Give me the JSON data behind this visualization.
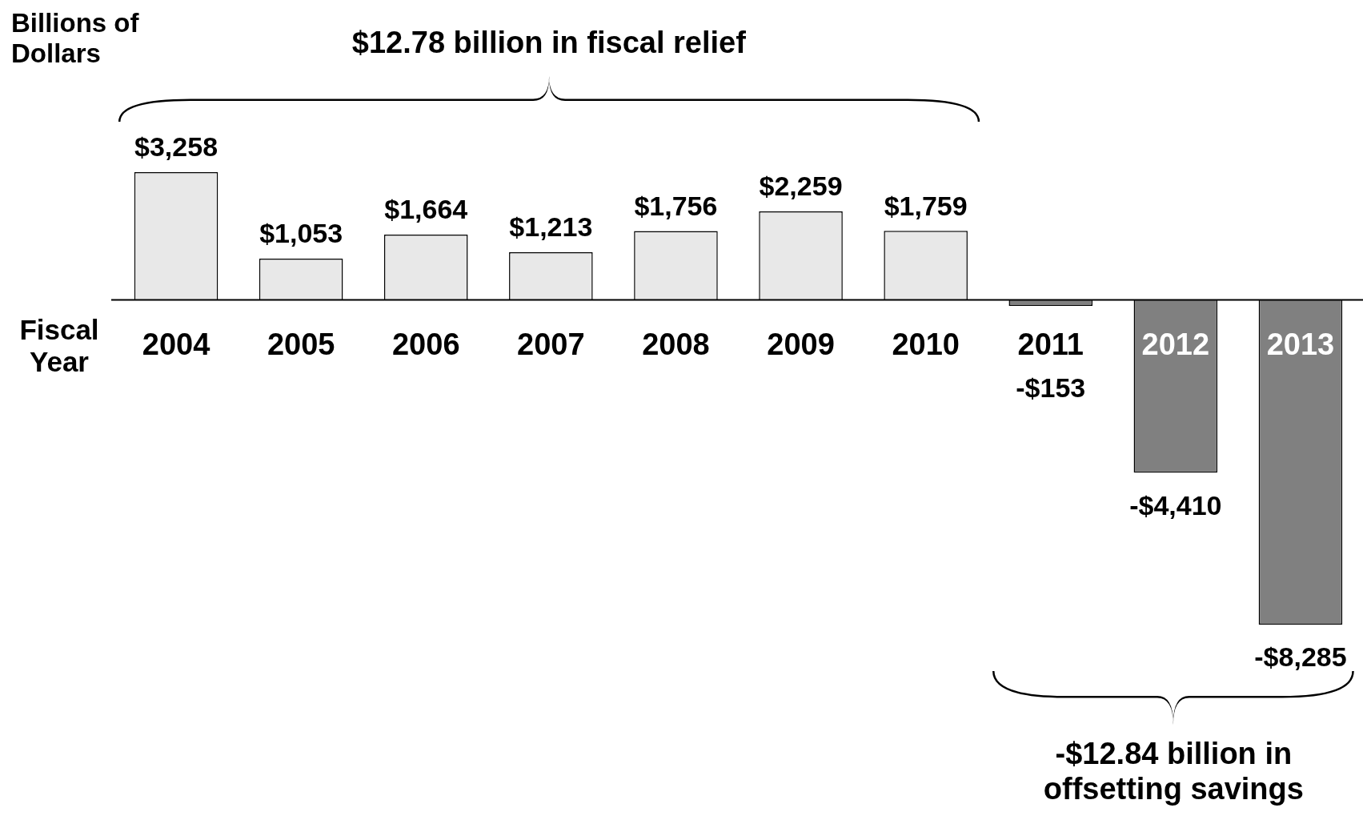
{
  "chart_data": {
    "type": "bar",
    "ylabel": "Billions of Dollars",
    "xlabel": "Fiscal Year",
    "categories": [
      "2004",
      "2005",
      "2006",
      "2007",
      "2008",
      "2009",
      "2010",
      "2011",
      "2012",
      "2013"
    ],
    "values": [
      3258,
      1053,
      1664,
      1213,
      1756,
      2259,
      1759,
      -153,
      -4410,
      -8285
    ],
    "value_labels": [
      "$3,258",
      "$1,053",
      "$1,664",
      "$1,213",
      "$1,756",
      "$2,259",
      "$1,759",
      "-$153",
      "-$4,410",
      "-$8,285"
    ],
    "colors": [
      "#e8e8e8",
      "#e8e8e8",
      "#e8e8e8",
      "#e8e8e8",
      "#e8e8e8",
      "#e8e8e8",
      "#e8e8e8",
      "#808080",
      "#808080",
      "#808080"
    ],
    "annotations": [
      "$12.78 billion in fiscal relief",
      "-$12.84 billion in offsetting savings"
    ],
    "legend": false
  }
}
